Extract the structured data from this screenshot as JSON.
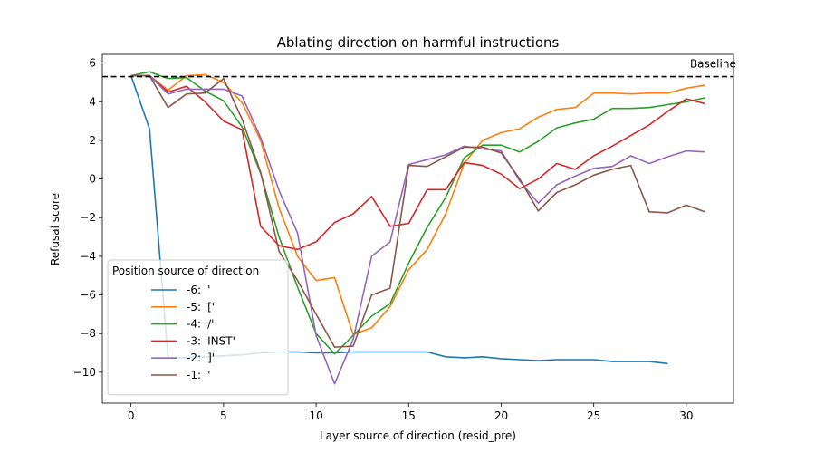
{
  "chart_data": {
    "type": "line",
    "title": "Ablating direction on harmful instructions",
    "xlabel": "Layer source of direction (resid_pre)",
    "ylabel": "Refusal score",
    "xlim": [
      -1.55,
      32.55
    ],
    "ylim": [
      -11.6,
      6.45
    ],
    "xticks": [
      0,
      5,
      10,
      15,
      20,
      25,
      30
    ],
    "yticks": [
      -10,
      -8,
      -6,
      -4,
      -2,
      0,
      2,
      4,
      6
    ],
    "grid": false,
    "legend_title": "Position source of direction",
    "legend_position": "lower-left",
    "baseline": {
      "value": 5.3,
      "label": "Baseline",
      "style": "dashed",
      "color": "#000000"
    },
    "x": [
      0,
      1,
      2,
      3,
      4,
      5,
      6,
      7,
      8,
      9,
      10,
      11,
      12,
      13,
      14,
      15,
      16,
      17,
      18,
      19,
      20,
      21,
      22,
      23,
      24,
      25,
      26,
      27,
      28,
      29,
      30,
      31
    ],
    "series": [
      {
        "name": "-6: ''",
        "color": "#1f77b4",
        "values": [
          5.35,
          2.6,
          -9.25,
          -9.25,
          -9.2,
          -9.15,
          -9.1,
          -9.0,
          -8.95,
          -8.95,
          -9.0,
          -9.0,
          -8.95,
          -8.95,
          -8.95,
          -8.95,
          -8.95,
          -9.2,
          -9.25,
          -9.2,
          -9.3,
          -9.35,
          -9.4,
          -9.35,
          -9.35,
          -9.35,
          -9.45,
          -9.45,
          -9.45,
          -9.55,
          null,
          null
        ]
      },
      {
        "name": "-5: '['",
        "color": "#ff7f0e",
        "values": [
          5.35,
          5.35,
          4.6,
          5.35,
          5.4,
          5.0,
          3.95,
          2.0,
          -1.5,
          -4.0,
          -5.25,
          -5.1,
          -8.05,
          -7.7,
          -6.6,
          -4.7,
          -3.65,
          -1.8,
          0.8,
          2.0,
          2.4,
          2.6,
          3.2,
          3.6,
          3.7,
          4.45,
          4.45,
          4.4,
          4.45,
          4.45,
          4.7,
          4.85
        ]
      },
      {
        "name": "-4: '/'",
        "color": "#2ca02c",
        "values": [
          5.35,
          5.55,
          5.2,
          5.25,
          4.55,
          4.05,
          2.7,
          0.3,
          -3.0,
          -5.6,
          -8.0,
          -9.05,
          -8.1,
          -7.1,
          -6.45,
          -4.35,
          -2.5,
          -0.95,
          1.1,
          1.75,
          1.75,
          1.4,
          1.95,
          2.65,
          2.9,
          3.1,
          3.65,
          3.65,
          3.7,
          3.85,
          4.0,
          4.2
        ]
      },
      {
        "name": "-3: 'INST'",
        "color": "#d62728",
        "values": [
          5.35,
          5.35,
          4.5,
          4.8,
          4.0,
          3.0,
          2.55,
          -2.45,
          -3.45,
          -3.65,
          -3.25,
          -2.25,
          -1.8,
          -0.9,
          -2.45,
          -2.3,
          -0.55,
          -0.55,
          0.85,
          0.7,
          0.25,
          -0.5,
          0.0,
          0.8,
          0.5,
          1.2,
          1.7,
          2.25,
          2.8,
          3.5,
          4.15,
          3.9
        ]
      },
      {
        "name": "-2: ']'",
        "color": "#9467bd",
        "values": [
          5.35,
          5.35,
          4.4,
          4.65,
          4.65,
          4.65,
          4.3,
          2.15,
          -0.6,
          -2.8,
          -8.1,
          -10.6,
          -8.3,
          -4.0,
          -3.25,
          0.75,
          1.0,
          1.25,
          1.7,
          1.55,
          1.45,
          -0.1,
          -1.25,
          -0.3,
          0.15,
          0.55,
          0.65,
          1.2,
          0.8,
          1.15,
          1.45,
          1.4
        ]
      },
      {
        "name": "-1: ''",
        "color": "#8c564b",
        "values": [
          5.35,
          5.35,
          3.7,
          4.4,
          4.45,
          5.2,
          3.1,
          0.35,
          -3.75,
          -5.25,
          -7.0,
          -8.7,
          -8.65,
          -6.0,
          -5.65,
          0.7,
          0.65,
          1.15,
          1.65,
          1.65,
          1.35,
          0.0,
          -1.65,
          -0.7,
          -0.3,
          0.2,
          0.5,
          0.7,
          -1.7,
          -1.75,
          -1.35,
          -1.7
        ]
      }
    ]
  }
}
